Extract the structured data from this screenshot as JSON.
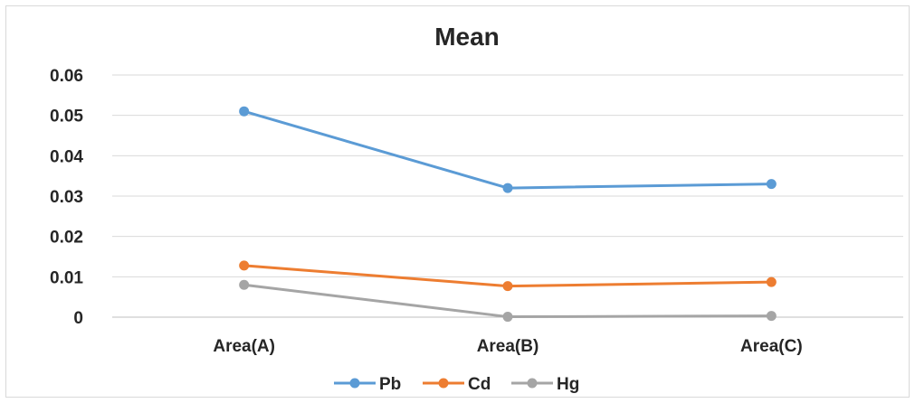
{
  "chart_data": {
    "type": "line",
    "title": "Mean",
    "xlabel": "",
    "ylabel": "",
    "categories": [
      "Area(A)",
      "Area(B)",
      "Area(C)"
    ],
    "ylim": [
      0,
      0.06
    ],
    "yticks": [
      "0",
      "0.01",
      "0.02",
      "0.03",
      "0.04",
      "0.05",
      "0.06"
    ],
    "grid": true,
    "legend": "bottom",
    "series": [
      {
        "name": "Pb",
        "color": "#5b9bd5",
        "values": [
          0.051,
          0.032,
          0.033
        ]
      },
      {
        "name": "Cd",
        "color": "#ed7d31",
        "values": [
          0.0128,
          0.0077,
          0.0087
        ]
      },
      {
        "name": "Hg",
        "color": "#a5a5a5",
        "values": [
          0.008,
          0.0001,
          0.0003
        ]
      }
    ]
  }
}
